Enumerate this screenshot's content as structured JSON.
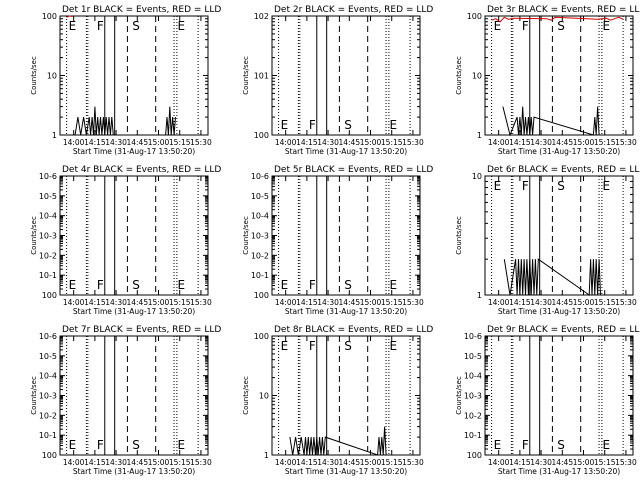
{
  "chart_data": [
    {
      "type": "line",
      "title": "Det 1r BLACK = Events, RED = LLD",
      "xlabel": "Start Time (31-Aug-17 13:50:20)",
      "ylabel": "Counts/sec",
      "xtick_labels": [
        "14:00",
        "14:15",
        "14:30",
        "14:45",
        "15:00",
        "15:15",
        "15:30"
      ],
      "ytick_labels": [
        "1",
        "10",
        "100"
      ],
      "yscale": "log",
      "letters": [
        "E",
        "F",
        "S",
        "E"
      ],
      "letters_row": "top",
      "series": [
        {
          "name": "Events",
          "color": "#000000",
          "x": [
            "14:01",
            "14:03",
            "14:05",
            "14:07",
            "14:09",
            "14:11",
            "14:12",
            "14:13",
            "14:14",
            "14:15",
            "14:16",
            "14:17",
            "14:18",
            "14:19",
            "14:20",
            "14:21",
            "14:22",
            "14:23",
            "14:24",
            "14:25",
            "14:26",
            "14:27",
            "14:28",
            "15:05",
            "15:06",
            "15:07",
            "15:08",
            "15:09",
            "15:10",
            "15:11",
            "15:12"
          ],
          "values": [
            1,
            2,
            1,
            2,
            1,
            2,
            1,
            2,
            1,
            3,
            1,
            2,
            1,
            2,
            1,
            2,
            1,
            2,
            1,
            2,
            1,
            2,
            1,
            1,
            2,
            1,
            3,
            1,
            2,
            1,
            2
          ]
        },
        {
          "name": "LLD",
          "color": "#dd0000",
          "x": [
            "13:55",
            "13:57",
            "13:59"
          ],
          "values": [
            95,
            100,
            98
          ]
        }
      ]
    },
    {
      "type": "line",
      "title": "Det 2r BLACK = Events, RED = LLD",
      "xlabel": "Start Time (31-Aug-17 13:50:20)",
      "ylabel": "Counts/sec",
      "xtick_labels": [
        "14:00",
        "14:15",
        "14:30",
        "14:45",
        "15:00",
        "15:15",
        "15:30"
      ],
      "ytick_labels": [
        "10^0",
        "10^1",
        "10^2"
      ],
      "yscale": "log",
      "letters": [
        "E",
        "F",
        "S",
        "E"
      ],
      "letters_row": "bottom",
      "series": []
    },
    {
      "type": "line",
      "title": "Det 3r BLACK = Events, RED = LLD",
      "xlabel": "Start Time (31-Aug-17 13:50:20)",
      "ylabel": "Counts/sec",
      "xtick_labels": [
        "14:00",
        "14:15",
        "14:30",
        "14:45",
        "15:00",
        "15:15",
        "15:30"
      ],
      "ytick_labels": [
        "1",
        "10",
        "100"
      ],
      "yscale": "log",
      "letters": [
        "E",
        "F",
        "S",
        "E"
      ],
      "letters_row": "top",
      "series": [
        {
          "name": "Events",
          "color": "#000000",
          "x": [
            "14:03",
            "14:08",
            "14:13",
            "14:14",
            "14:15",
            "14:16",
            "14:17",
            "14:18",
            "14:19",
            "14:20",
            "14:21",
            "14:22",
            "14:23",
            "14:24",
            "14:25",
            "15:07",
            "15:08",
            "15:09",
            "15:10",
            "15:11"
          ],
          "values": [
            3,
            1,
            2,
            1,
            2,
            1,
            3,
            1,
            2,
            1,
            2,
            1,
            2,
            1,
            2,
            1,
            2,
            1,
            3,
            1
          ]
        },
        {
          "name": "LLD",
          "color": "#dd0000",
          "x": [
            "13:55",
            "13:58",
            "14:01",
            "14:04",
            "14:07",
            "14:10",
            "14:34",
            "14:37",
            "14:40",
            "15:10",
            "15:13",
            "15:16",
            "15:19",
            "15:22",
            "15:25",
            "15:28"
          ],
          "values": [
            85,
            90,
            80,
            95,
            88,
            92,
            90,
            85,
            95,
            88,
            90,
            92,
            85,
            90,
            95,
            88
          ]
        }
      ]
    },
    {
      "type": "line",
      "title": "Det 4r BLACK = Events, RED = LLD",
      "xlabel": "Start Time (31-Aug-17 13:50:20)",
      "ylabel": "Counts/sec",
      "xtick_labels": [
        "14:00",
        "14:15",
        "14:30",
        "14:45",
        "15:00",
        "15:15",
        "15:30"
      ],
      "ytick_labels": [
        "10^0",
        "10^-1",
        "10^-2",
        "10^-3",
        "10^-4",
        "10^-5",
        "10^-6"
      ],
      "yscale": "log",
      "letters": [
        "E",
        "F",
        "S",
        "E"
      ],
      "letters_row": "bottom",
      "series": []
    },
    {
      "type": "line",
      "title": "Det 5r BLACK = Events, RED = LLD",
      "xlabel": "Start Time (31-Aug-17 13:50:20)",
      "ylabel": "Counts/sec",
      "xtick_labels": [
        "14:00",
        "14:15",
        "14:30",
        "14:45",
        "15:00",
        "15:15",
        "15:30"
      ],
      "ytick_labels": [
        "10^0",
        "10^-1",
        "10^-2",
        "10^-3",
        "10^-4",
        "10^-5",
        "10^-6"
      ],
      "yscale": "log",
      "letters": [
        "E",
        "F",
        "S",
        "E"
      ],
      "letters_row": "bottom",
      "series": []
    },
    {
      "type": "line",
      "title": "Det 6r BLACK = Events, RED = LLD",
      "xlabel": "Start Time (31-Aug-17 13:50:20)",
      "ylabel": "Counts/sec",
      "xtick_labels": [
        "14:00",
        "14:15",
        "14:30",
        "14:45",
        "15:00",
        "15:15",
        "15:30"
      ],
      "ytick_labels": [
        "1",
        "10"
      ],
      "yscale": "log",
      "letters": [
        "E",
        "F",
        "S",
        "E"
      ],
      "letters_row": "top",
      "series": [
        {
          "name": "Events",
          "color": "#000000",
          "x": [
            "14:04",
            "14:08",
            "14:12",
            "14:13",
            "14:14",
            "14:15",
            "14:16",
            "14:17",
            "14:18",
            "14:19",
            "14:20",
            "14:21",
            "14:22",
            "14:23",
            "14:24",
            "14:25",
            "14:26",
            "14:27",
            "14:28",
            "15:04",
            "15:05",
            "15:06",
            "15:07",
            "15:08",
            "15:09",
            "15:10",
            "15:11",
            "15:12"
          ],
          "values": [
            2,
            1,
            2,
            1,
            2,
            1,
            2,
            1,
            2,
            1,
            2,
            1,
            2,
            1,
            2,
            1,
            2,
            1,
            2,
            1,
            2,
            1,
            2,
            1,
            2,
            1,
            2,
            1
          ]
        }
      ]
    },
    {
      "type": "line",
      "title": "Det 7r BLACK = Events, RED = LLD",
      "xlabel": "Start Time (31-Aug-17 13:50:20)",
      "ylabel": "Counts/sec",
      "xtick_labels": [
        "14:00",
        "14:15",
        "14:30",
        "14:45",
        "15:00",
        "15:15",
        "15:30"
      ],
      "ytick_labels": [
        "10^0",
        "10^-1",
        "10^-2",
        "10^-3",
        "10^-4",
        "10^-5",
        "10^-6"
      ],
      "yscale": "log",
      "letters": [
        "E",
        "F",
        "S",
        "E"
      ],
      "letters_row": "bottom",
      "series": []
    },
    {
      "type": "line",
      "title": "Det 8r BLACK = Events, RED = LLD",
      "xlabel": "Start Time (31-Aug-17 13:50:20)",
      "ylabel": "Counts/sec",
      "xtick_labels": [
        "14:00",
        "14:15",
        "14:30",
        "14:45",
        "15:00",
        "15:15",
        "15:30"
      ],
      "ytick_labels": [
        "1",
        "10",
        "100"
      ],
      "yscale": "log",
      "letters": [
        "E",
        "F",
        "S",
        "E"
      ],
      "letters_row": "top",
      "series": [
        {
          "name": "Events",
          "color": "#000000",
          "x": [
            "14:03",
            "14:05",
            "14:07",
            "14:09",
            "14:11",
            "14:13",
            "14:14",
            "14:15",
            "14:16",
            "14:17",
            "14:18",
            "14:19",
            "14:20",
            "14:21",
            "14:22",
            "14:23",
            "14:24",
            "14:25",
            "14:26",
            "14:27",
            "14:28",
            "15:05",
            "15:06",
            "15:07",
            "15:08",
            "15:09",
            "15:10",
            "15:11"
          ],
          "values": [
            2,
            1,
            2,
            1,
            2,
            1,
            2,
            1,
            2,
            1,
            2,
            1,
            2,
            1,
            2,
            1,
            2,
            1,
            2,
            1,
            2,
            1,
            2,
            1,
            2,
            1,
            3,
            1
          ]
        }
      ]
    },
    {
      "type": "line",
      "title": "Det 9r BLACK = Events, RED = LLD",
      "xlabel": "Start Time (31-Aug-17 13:50:20)",
      "ylabel": "Counts/sec",
      "xtick_labels": [
        "14:00",
        "14:15",
        "14:30",
        "14:45",
        "15:00",
        "15:15",
        "15:30"
      ],
      "ytick_labels": [
        "10^0",
        "10^-1",
        "10^-2",
        "10^-3",
        "10^-4",
        "10^-5",
        "10^-6"
      ],
      "yscale": "log",
      "letters": [
        "E",
        "F",
        "S",
        "E"
      ],
      "letters_row": "bottom",
      "series": []
    }
  ]
}
